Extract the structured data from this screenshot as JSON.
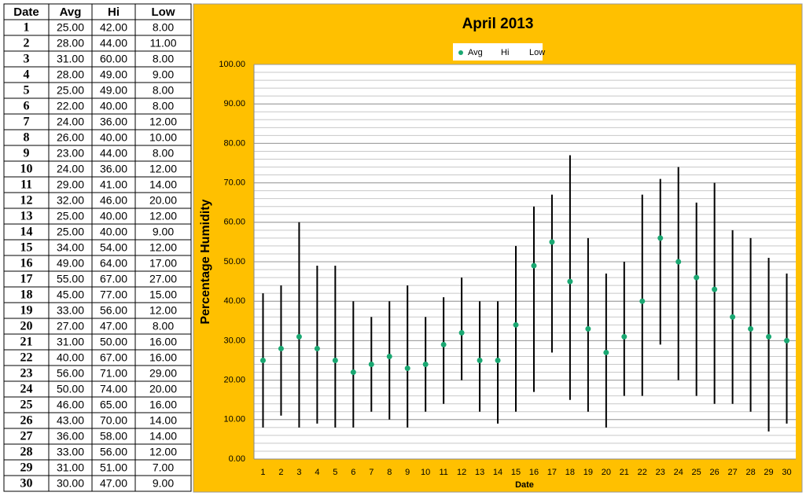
{
  "table": {
    "header": [
      "Date",
      "Avg",
      "Hi",
      "Low"
    ],
    "rows": [
      [
        "1",
        "25.00",
        "42.00",
        "8.00"
      ],
      [
        "2",
        "28.00",
        "44.00",
        "11.00"
      ],
      [
        "3",
        "31.00",
        "60.00",
        "8.00"
      ],
      [
        "4",
        "28.00",
        "49.00",
        "9.00"
      ],
      [
        "5",
        "25.00",
        "49.00",
        "8.00"
      ],
      [
        "6",
        "22.00",
        "40.00",
        "8.00"
      ],
      [
        "7",
        "24.00",
        "36.00",
        "12.00"
      ],
      [
        "8",
        "26.00",
        "40.00",
        "10.00"
      ],
      [
        "9",
        "23.00",
        "44.00",
        "8.00"
      ],
      [
        "10",
        "24.00",
        "36.00",
        "12.00"
      ],
      [
        "11",
        "29.00",
        "41.00",
        "14.00"
      ],
      [
        "12",
        "32.00",
        "46.00",
        "20.00"
      ],
      [
        "13",
        "25.00",
        "40.00",
        "12.00"
      ],
      [
        "14",
        "25.00",
        "40.00",
        "9.00"
      ],
      [
        "15",
        "34.00",
        "54.00",
        "12.00"
      ],
      [
        "16",
        "49.00",
        "64.00",
        "17.00"
      ],
      [
        "17",
        "55.00",
        "67.00",
        "27.00"
      ],
      [
        "18",
        "45.00",
        "77.00",
        "15.00"
      ],
      [
        "19",
        "33.00",
        "56.00",
        "12.00"
      ],
      [
        "20",
        "27.00",
        "47.00",
        "8.00"
      ],
      [
        "21",
        "31.00",
        "50.00",
        "16.00"
      ],
      [
        "22",
        "40.00",
        "67.00",
        "16.00"
      ],
      [
        "23",
        "56.00",
        "71.00",
        "29.00"
      ],
      [
        "24",
        "50.00",
        "74.00",
        "20.00"
      ],
      [
        "25",
        "46.00",
        "65.00",
        "16.00"
      ],
      [
        "26",
        "43.00",
        "70.00",
        "14.00"
      ],
      [
        "27",
        "36.00",
        "58.00",
        "14.00"
      ],
      [
        "28",
        "33.00",
        "56.00",
        "12.00"
      ],
      [
        "29",
        "31.00",
        "51.00",
        "7.00"
      ],
      [
        "30",
        "30.00",
        "47.00",
        "9.00"
      ]
    ]
  },
  "chart_data": {
    "type": "hilo",
    "title": "April 2013",
    "x_label": "Date",
    "y_label": "Percentage Humidity",
    "categories": [
      "1",
      "2",
      "3",
      "4",
      "5",
      "6",
      "7",
      "8",
      "9",
      "10",
      "11",
      "12",
      "13",
      "14",
      "15",
      "16",
      "17",
      "18",
      "19",
      "20",
      "21",
      "22",
      "23",
      "24",
      "25",
      "26",
      "27",
      "28",
      "29",
      "30"
    ],
    "series": [
      {
        "name": "Avg",
        "color": "#1aa872",
        "values": [
          25,
          28,
          31,
          28,
          25,
          22,
          24,
          26,
          23,
          24,
          29,
          32,
          25,
          25,
          34,
          49,
          55,
          45,
          33,
          27,
          31,
          40,
          56,
          50,
          46,
          43,
          36,
          33,
          31,
          30
        ]
      },
      {
        "name": "Hi",
        "color": "#000000",
        "values": [
          42,
          44,
          60,
          49,
          49,
          40,
          36,
          40,
          44,
          36,
          41,
          46,
          40,
          40,
          54,
          64,
          67,
          77,
          56,
          47,
          50,
          67,
          71,
          74,
          65,
          70,
          58,
          56,
          51,
          47
        ]
      },
      {
        "name": "Low",
        "color": "#000000",
        "values": [
          8,
          11,
          8,
          9,
          8,
          8,
          12,
          10,
          8,
          12,
          14,
          20,
          12,
          9,
          12,
          17,
          27,
          15,
          12,
          8,
          16,
          16,
          29,
          20,
          16,
          14,
          14,
          12,
          7,
          9
        ]
      }
    ],
    "ylim": [
      0,
      100
    ],
    "yticks": [
      {
        "value": 0,
        "label": "0.00"
      },
      {
        "value": 10,
        "label": "10.00"
      },
      {
        "value": 20,
        "label": "20.00"
      },
      {
        "value": 30,
        "label": "30.00"
      },
      {
        "value": 40,
        "label": "40.00"
      },
      {
        "value": 50,
        "label": "50.00"
      },
      {
        "value": 60,
        "label": "60.00"
      },
      {
        "value": 70,
        "label": "70.00"
      },
      {
        "value": 80,
        "label": "80.00"
      },
      {
        "value": 90,
        "label": "90.00"
      },
      {
        "value": 100,
        "label": "100.00"
      }
    ],
    "grid": true,
    "minor_grid_step": 2,
    "legend": "top"
  }
}
